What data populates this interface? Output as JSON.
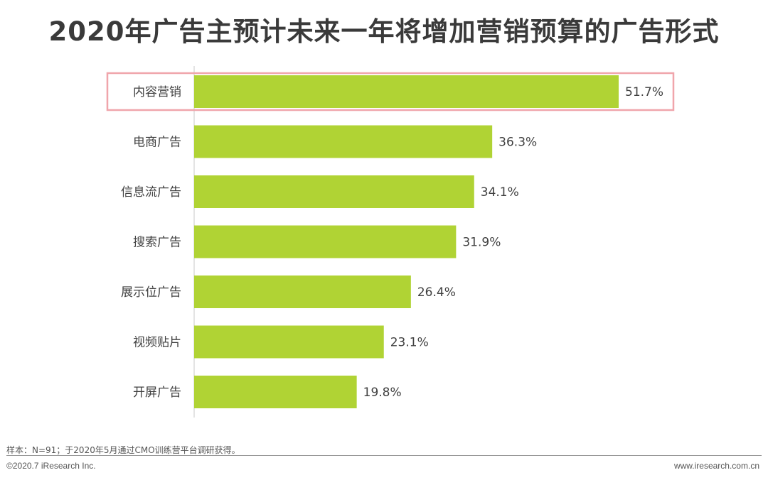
{
  "page": {
    "title": "2020年广告主预计未来一年将增加营销预算的广告形式"
  },
  "footer": {
    "note": "样本：N=91；于2020年5月通过CMO训练营平台调研获得。",
    "copyright": "©2020.7 iResearch Inc.",
    "website": "www.iresearch.com.cn"
  },
  "chart_data": {
    "type": "bar",
    "orientation": "horizontal",
    "title": "2020年广告主预计未来一年将增加营销预算的广告形式",
    "categories": [
      "内容营销",
      "电商广告",
      "信息流广告",
      "搜索广告",
      "展示位广告",
      "视频贴片",
      "开屏广告"
    ],
    "values": [
      51.7,
      36.3,
      34.1,
      31.9,
      26.4,
      23.1,
      19.8
    ],
    "value_labels": [
      "51.7%",
      "36.3%",
      "34.1%",
      "31.9%",
      "26.4%",
      "23.1%",
      "19.8%"
    ],
    "unit": "%",
    "xlim": [
      0,
      51.7
    ],
    "grid": false,
    "highlighted_category": "内容营销",
    "bar_color": "#b0d334",
    "highlight_color": "#f0a5ab"
  }
}
